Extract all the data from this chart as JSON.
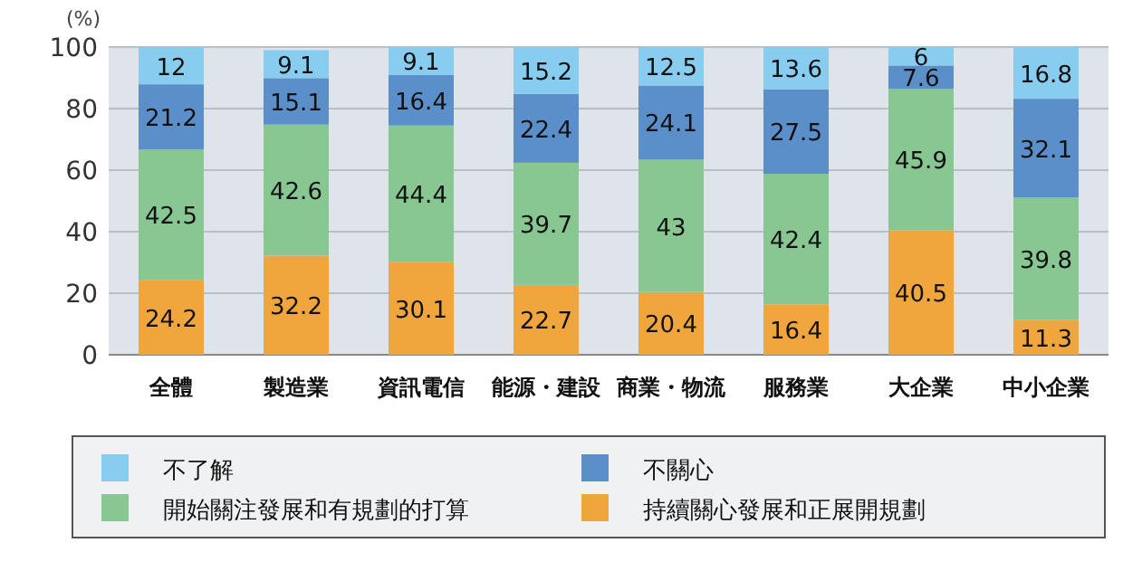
{
  "chart_data": {
    "type": "bar",
    "stacked": true,
    "ylabel": "(%)",
    "categories": [
      "全體",
      "製造業",
      "資訊電信",
      "能源・建設",
      "商業・物流",
      "服務業",
      "大企業",
      "中小企業"
    ],
    "series": [
      {
        "name": "持續關心發展和正展開規劃",
        "color": "#f0a63c",
        "values": [
          24.2,
          32.2,
          30.1,
          22.7,
          20.4,
          16.4,
          40.5,
          11.3
        ]
      },
      {
        "name": "開始關注發展和有規劃的打算",
        "color": "#88c792",
        "values": [
          42.5,
          42.6,
          44.4,
          39.7,
          43,
          42.4,
          45.9,
          39.8
        ]
      },
      {
        "name": "不關心",
        "color": "#5b8fc9",
        "values": [
          21.2,
          15.1,
          16.4,
          22.4,
          24.1,
          27.5,
          7.6,
          32.1
        ]
      },
      {
        "name": "不了解",
        "color": "#88cdf0",
        "values": [
          12,
          9.1,
          9.1,
          15.2,
          12.5,
          13.6,
          6,
          16.8
        ]
      }
    ],
    "ylim": [
      0,
      100
    ],
    "yticks": [
      0,
      20,
      40,
      60,
      80,
      100
    ],
    "grid": "y",
    "data_labels": true,
    "legend": "bottom"
  }
}
